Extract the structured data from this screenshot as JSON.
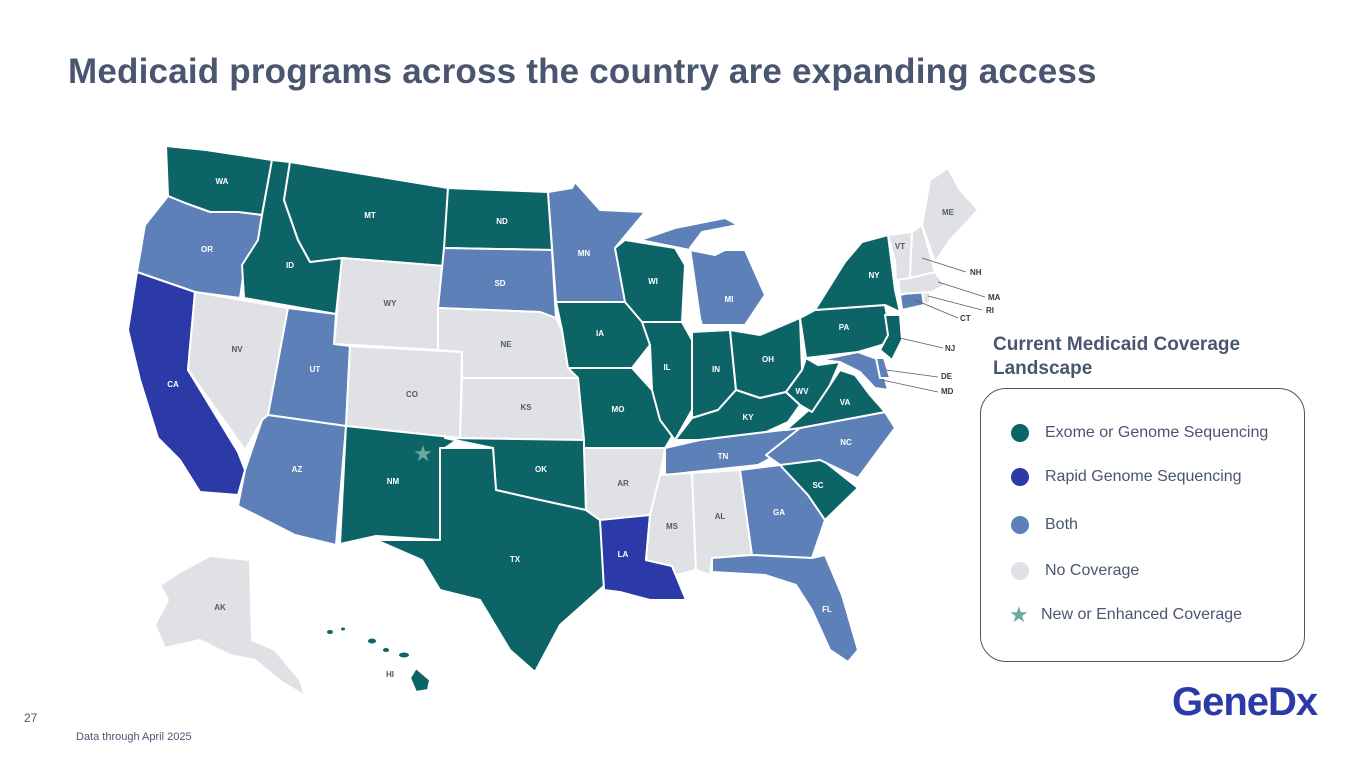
{
  "title": "Medicaid programs across the country are expanding access",
  "legend": {
    "heading": "Current Medicaid Coverage Landscape",
    "items": [
      {
        "label": "Exome or Genome Sequencing",
        "color": "#0d6467"
      },
      {
        "label": "Rapid Genome Sequencing",
        "color": "#2b3aa6"
      },
      {
        "label": "Both",
        "color": "#5d80b8"
      },
      {
        "label": "No Coverage",
        "color": "#dfe1e5"
      },
      {
        "label": "New or Enhanced Coverage",
        "color": "#6aa9a0",
        "icon": "star-icon"
      }
    ]
  },
  "states": {
    "WA": "WA",
    "OR": "OR",
    "CA": "CA",
    "ID": "ID",
    "NV": "NV",
    "MT": "MT",
    "WY": "WY",
    "UT": "UT",
    "AZ": "AZ",
    "CO": "CO",
    "NM": "NM",
    "ND": "ND",
    "SD": "SD",
    "NE": "NE",
    "KS": "KS",
    "OK": "OK",
    "TX": "TX",
    "MN": "MN",
    "IA": "IA",
    "MO": "MO",
    "AR": "AR",
    "LA": "LA",
    "WI": "WI",
    "IL": "IL",
    "MI": "MI",
    "IN": "IN",
    "OH": "OH",
    "KY": "KY",
    "TN": "TN",
    "MS": "MS",
    "AL": "AL",
    "GA": "GA",
    "FL": "FL",
    "SC": "SC",
    "NC": "NC",
    "VA": "VA",
    "WV": "WV",
    "PA": "PA",
    "NY": "NY",
    "VT": "VT",
    "ME": "ME",
    "NH": "NH",
    "MA": "MA",
    "RI": "RI",
    "CT": "CT",
    "NJ": "NJ",
    "DE": "DE",
    "MD": "MD",
    "AK": "AK",
    "HI": "HI"
  },
  "footer": {
    "page_number": "27",
    "note": "Data through April 2025",
    "logo": "GeneDx"
  }
}
